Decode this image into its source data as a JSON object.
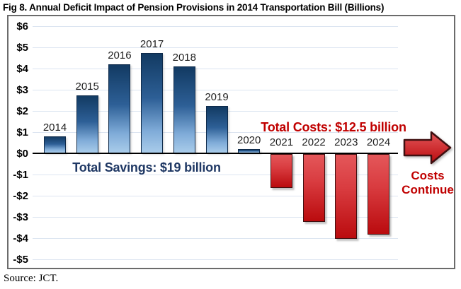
{
  "page": {
    "source": "Source: JCT."
  },
  "colors": {
    "blue_top": "#123a62",
    "blue_bottom": "#a9ccea",
    "blue_border": "#0e2a4a",
    "red_top": "#e4575a",
    "red_bottom": "#ba0b0e",
    "red_border": "#3f0f10",
    "savings_text": "#1f3864",
    "costs_text": "#c00000",
    "grid": "#dce5f1",
    "axis": "#000000",
    "tick_text": "#000000",
    "year_text": "#1f1f1f"
  },
  "chart_data": {
    "type": "bar",
    "title": "Fig 8. Annual Deficit Impact of Pension Provisions in 2014 Transportation Bill (Billions)",
    "units": "$ billions",
    "categories": [
      "2014",
      "2015",
      "2016",
      "2017",
      "2018",
      "2019",
      "2020",
      "2021",
      "2022",
      "2023",
      "2024"
    ],
    "values": [
      0.8,
      2.75,
      4.2,
      4.75,
      4.1,
      2.25,
      0.2,
      -1.6,
      -3.2,
      -4.0,
      -3.8
    ],
    "positive_color_meaning": "savings (deficit reduction)",
    "negative_color_meaning": "costs (deficit increase)",
    "ylim": [
      -5,
      6
    ],
    "ytick_values": [
      6,
      5,
      4,
      3,
      2,
      1,
      0,
      -1,
      -2,
      -3,
      -4,
      -5
    ],
    "ytick_labels": [
      "$6",
      "$5",
      "$4",
      "$3",
      "$2",
      "$1",
      "$0",
      "-$1",
      "-$2",
      "-$3",
      "-$4",
      "-$5"
    ],
    "grid": true,
    "legend": false,
    "xlabel": "",
    "ylabel": "",
    "annotations": {
      "savings": "Total Savings: $19 billion",
      "costs": "Total Costs: $12.5 billion",
      "costs_continue": [
        "Costs",
        "Continue"
      ]
    }
  }
}
